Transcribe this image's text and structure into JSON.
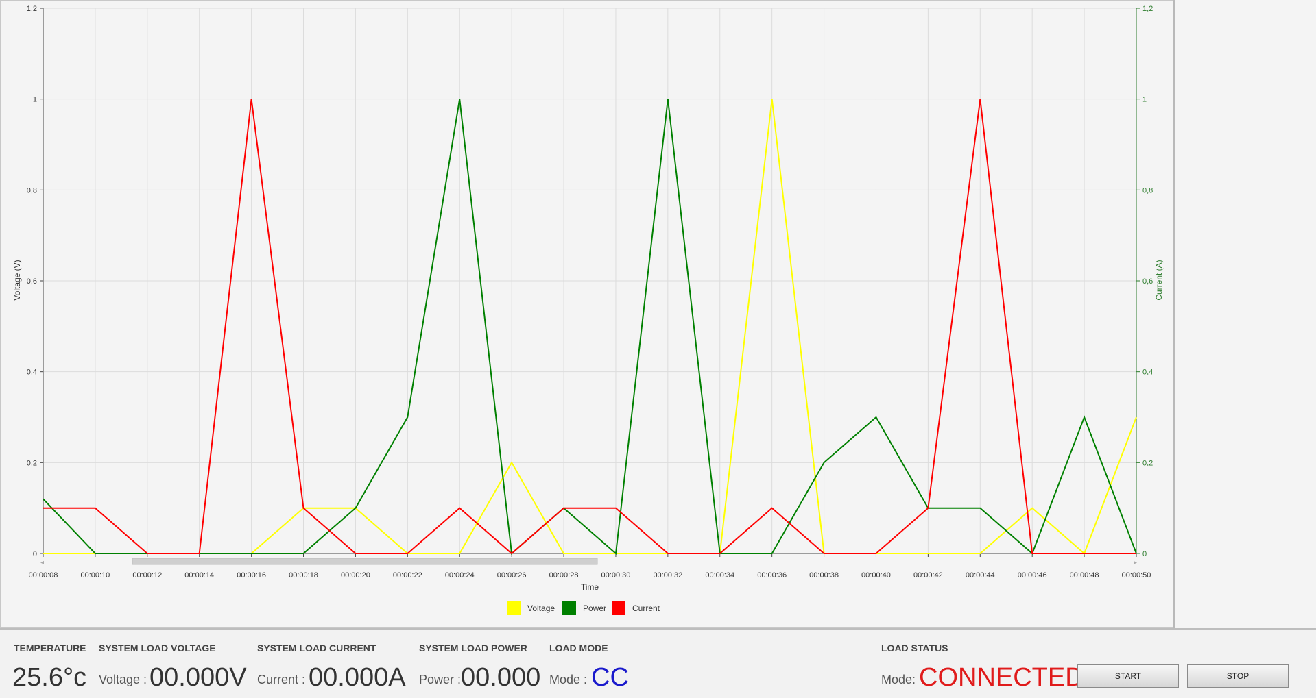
{
  "chart_data": {
    "type": "line",
    "xlabel": "Time",
    "ylabel": "Voltage (V)",
    "y2label": "Current (A)",
    "ylim": [
      0,
      1.2
    ],
    "y2lim": [
      0,
      1.2
    ],
    "yticks": [
      "0",
      "0,2",
      "0,4",
      "0,6",
      "0,8",
      "1",
      "1,2"
    ],
    "y2ticks": [
      "0",
      "0,2",
      "0,4",
      "0,6",
      "0,8",
      "1",
      "1,2"
    ],
    "x": [
      "00:00:08",
      "00:00:10",
      "00:00:12",
      "00:00:14",
      "00:00:16",
      "00:00:18",
      "00:00:20",
      "00:00:22",
      "00:00:24",
      "00:00:26",
      "00:00:28",
      "00:00:30",
      "00:00:32",
      "00:00:34",
      "00:00:36",
      "00:00:38",
      "00:00:40",
      "00:00:42",
      "00:00:44",
      "00:00:46",
      "00:00:48",
      "00:00:50"
    ],
    "grid": true,
    "legend_position": "bottom-center",
    "series": [
      {
        "name": "Voltage",
        "color": "#ffff00",
        "values": [
          0,
          0,
          0,
          0,
          0,
          0.1,
          0.1,
          0,
          0,
          0.2,
          0,
          0,
          0,
          0,
          1,
          0,
          0,
          0,
          0,
          0.1,
          0,
          0.3
        ]
      },
      {
        "name": "Power",
        "color": "#008000",
        "values": [
          0.12,
          0,
          0,
          0,
          0,
          0,
          0.1,
          0.3,
          1,
          0,
          0.1,
          0,
          1,
          0,
          0,
          0.2,
          0.3,
          0.1,
          0.1,
          0,
          0.3,
          0
        ]
      },
      {
        "name": "Current",
        "color": "#ff0000",
        "values": [
          0.1,
          0.1,
          0,
          0,
          1,
          0.1,
          0,
          0,
          0.1,
          0,
          0.1,
          0.1,
          0,
          0,
          0.1,
          0,
          0,
          0.1,
          1,
          0,
          0,
          0
        ]
      }
    ]
  },
  "status": {
    "temperature": {
      "header": "TEMPERATURE",
      "value": "25.6°c"
    },
    "voltage": {
      "header": "SYSTEM LOAD VOLTAGE",
      "label": "Voltage :",
      "value": "00.000V"
    },
    "current": {
      "header": "SYSTEM LOAD CURRENT",
      "label": "Current :",
      "value": "00.000A"
    },
    "power": {
      "header": "SYSTEM LOAD POWER",
      "label": "Power :",
      "value": "00.000"
    },
    "mode": {
      "header": "LOAD MODE",
      "label": "Mode :",
      "value": "CC",
      "color": "#1a1acc"
    },
    "load_status": {
      "header": "LOAD STATUS",
      "label": "Mode:",
      "value": "CONNECTED",
      "color": "#e01b1b"
    }
  },
  "buttons": {
    "start": "START",
    "stop": "STOP"
  }
}
